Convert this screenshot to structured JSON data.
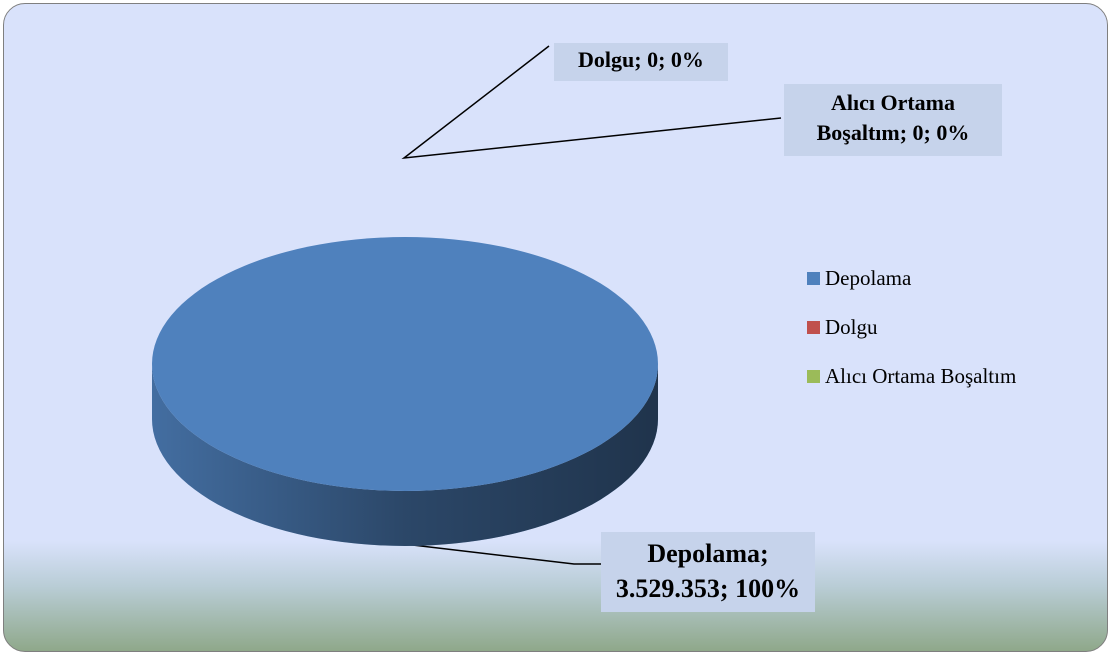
{
  "chart_data": {
    "type": "pie",
    "categories": [
      "Depolama",
      "Dolgu",
      "Alıcı Ortama Boşaltım"
    ],
    "values": [
      3529353,
      0,
      0
    ],
    "value_labels": [
      "Depolama; 3.529.353; 100%",
      "Dolgu; 0; 0%",
      "Alıcı Ortama Boşaltım; 0; 0%"
    ],
    "colors": [
      "#4f81bd",
      "#c0504d",
      "#9bbb59"
    ],
    "legend": "right"
  }
}
